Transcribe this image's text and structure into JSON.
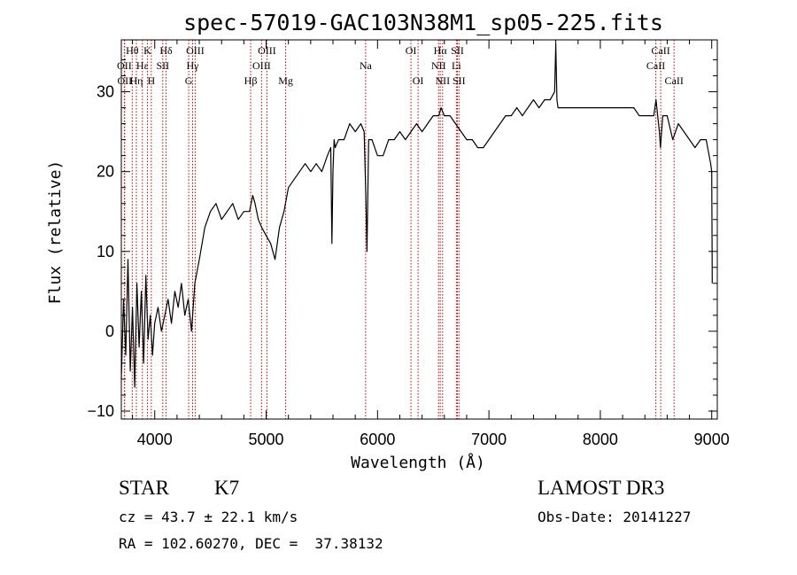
{
  "chart_data": {
    "type": "line",
    "title": "spec-57019-GAC103N38M1_sp05-225.fits",
    "xlabel": "Wavelength (Å)",
    "ylabel": "Flux (relative)",
    "xlim": [
      3700,
      9050
    ],
    "ylim": [
      -11,
      36.5
    ],
    "x_ticks": [
      {
        "value": 4000,
        "label": "4000"
      },
      {
        "value": 5000,
        "label": "5000"
      },
      {
        "value": 6000,
        "label": "6000"
      },
      {
        "value": 7000,
        "label": "7000"
      },
      {
        "value": 8000,
        "label": "8000"
      },
      {
        "value": 9000,
        "label": "9000"
      }
    ],
    "y_ticks": [
      {
        "value": -10,
        "label": "−10"
      },
      {
        "value": 0,
        "label": "0"
      },
      {
        "value": 10,
        "label": "10"
      },
      {
        "value": 20,
        "label": "20"
      },
      {
        "value": 30,
        "label": "30"
      }
    ],
    "series": [
      {
        "name": "flux",
        "x": [
          3700,
          3720,
          3740,
          3760,
          3780,
          3800,
          3820,
          3840,
          3860,
          3880,
          3900,
          3920,
          3940,
          3960,
          3980,
          4000,
          4030,
          4060,
          4090,
          4120,
          4150,
          4180,
          4210,
          4240,
          4270,
          4300,
          4330,
          4360,
          4400,
          4450,
          4500,
          4550,
          4600,
          4650,
          4700,
          4750,
          4800,
          4850,
          4880,
          4900,
          4930,
          4960,
          5000,
          5040,
          5080,
          5120,
          5160,
          5200,
          5250,
          5300,
          5350,
          5400,
          5450,
          5500,
          5550,
          5580,
          5590,
          5600,
          5610,
          5620,
          5650,
          5700,
          5750,
          5800,
          5850,
          5880,
          5895,
          5905,
          5920,
          5950,
          6000,
          6050,
          6100,
          6150,
          6200,
          6250,
          6300,
          6350,
          6400,
          6450,
          6500,
          6550,
          6570,
          6600,
          6650,
          6700,
          6750,
          6800,
          6850,
          6900,
          6950,
          7000,
          7050,
          7100,
          7150,
          7200,
          7250,
          7300,
          7350,
          7400,
          7450,
          7500,
          7550,
          7590,
          7600,
          7610,
          7620,
          7650,
          7700,
          7750,
          7800,
          7850,
          7900,
          7950,
          8000,
          8050,
          8100,
          8150,
          8200,
          8250,
          8300,
          8350,
          8400,
          8450,
          8480,
          8500,
          8530,
          8540,
          8560,
          8600,
          8650,
          8700,
          8750,
          8800,
          8850,
          8900,
          8950,
          8990,
          9000,
          9005
        ],
        "values": [
          -6,
          4,
          -3,
          9,
          -5,
          3,
          -7,
          6,
          -2,
          5,
          -4,
          7,
          -1,
          2,
          -3,
          1,
          3,
          0,
          2,
          4,
          1,
          5,
          3,
          6,
          2,
          4,
          0,
          6,
          9,
          13,
          15,
          16,
          14,
          15,
          16,
          14,
          15,
          15,
          17,
          16,
          14,
          13,
          12,
          11,
          9,
          13,
          15,
          18,
          19,
          20,
          21,
          20,
          21,
          20,
          22,
          23,
          11,
          20,
          24,
          23,
          24,
          24,
          26,
          25,
          26,
          25,
          17,
          10,
          24,
          24,
          22,
          22,
          24,
          24,
          25,
          24,
          25,
          26,
          25,
          26,
          27,
          27,
          28,
          27,
          27,
          26,
          25,
          24,
          24,
          23,
          23,
          24,
          25,
          26,
          27,
          27,
          28,
          27,
          28,
          29,
          28,
          29,
          29,
          30,
          36,
          29,
          28,
          28,
          28,
          28,
          28,
          28,
          28,
          28,
          28,
          28,
          28,
          28,
          28,
          28,
          28,
          27,
          27,
          27,
          27,
          29,
          25,
          23,
          27,
          27,
          24,
          26,
          25,
          24,
          23,
          24,
          24,
          21,
          20,
          6
        ]
      }
    ],
    "spectral_lines": [
      {
        "label": "Hθ",
        "wave": 3798,
        "row": 1
      },
      {
        "label": "OII",
        "wave": 3727,
        "row": 2
      },
      {
        "label": "OII",
        "wave": 3730,
        "row": 3
      },
      {
        "label": "Hε",
        "wave": 3889,
        "row": 2
      },
      {
        "label": "Hη",
        "wave": 3835,
        "row": 3
      },
      {
        "label": "K",
        "wave": 3934,
        "row": 1
      },
      {
        "label": "H",
        "wave": 3969,
        "row": 3
      },
      {
        "label": "SII",
        "wave": 4072,
        "row": 2
      },
      {
        "label": "Hδ",
        "wave": 4102,
        "row": 1
      },
      {
        "label": "OIII",
        "wave": 4363,
        "row": 1
      },
      {
        "label": "Hγ",
        "wave": 4340,
        "row": 2
      },
      {
        "label": "G",
        "wave": 4305,
        "row": 3
      },
      {
        "label": "OIII",
        "wave": 5007,
        "row": 1
      },
      {
        "label": "OIII",
        "wave": 4959,
        "row": 2
      },
      {
        "label": "Hβ",
        "wave": 4861,
        "row": 3
      },
      {
        "label": "Mg",
        "wave": 5175,
        "row": 3
      },
      {
        "label": "Na",
        "wave": 5893,
        "row": 2
      },
      {
        "label": "OI",
        "wave": 6300,
        "row": 1
      },
      {
        "label": "OI",
        "wave": 6364,
        "row": 3
      },
      {
        "label": "Hα",
        "wave": 6563,
        "row": 1
      },
      {
        "label": "NII",
        "wave": 6548,
        "row": 2
      },
      {
        "label": "NII",
        "wave": 6584,
        "row": 3
      },
      {
        "label": "SII",
        "wave": 6717,
        "row": 1
      },
      {
        "label": "Li",
        "wave": 6708,
        "row": 2
      },
      {
        "label": "SII",
        "wave": 6731,
        "row": 3
      },
      {
        "label": "CaII",
        "wave": 8542,
        "row": 1
      },
      {
        "label": "CaII",
        "wave": 8498,
        "row": 2
      },
      {
        "label": "CaII",
        "wave": 8662,
        "row": 3
      }
    ],
    "colors": {
      "line": "#000000",
      "marker": "#cc0000",
      "axes": "#000000"
    }
  },
  "info": {
    "object_type": "STAR",
    "subclass": "K7",
    "survey": "LAMOST DR3",
    "cz": "cz = 43.7 ± 22.1 km/s",
    "obs_date": "Obs-Date: 20141227",
    "coords": "RA = 102.60270, DEC =  37.38132"
  }
}
